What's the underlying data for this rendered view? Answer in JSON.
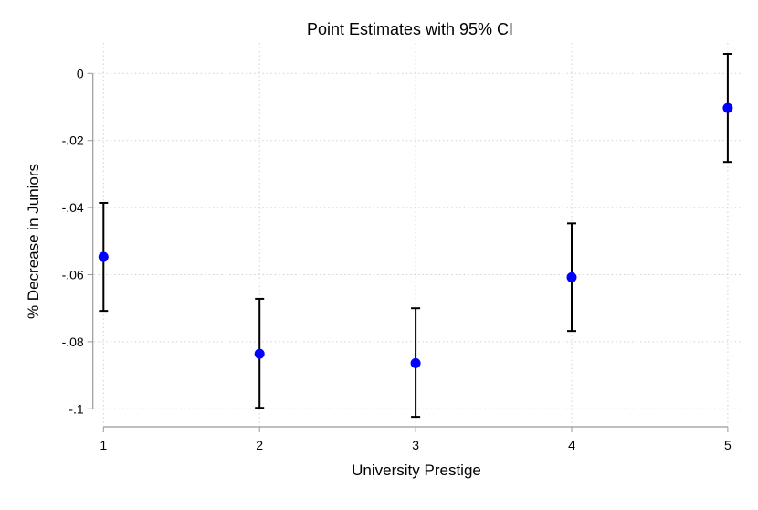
{
  "chart_data": {
    "type": "scatter",
    "title": "Point Estimates with 95% CI",
    "xlabel": "University Prestige",
    "ylabel": "% Decrease in Juniors",
    "x": [
      1,
      2,
      3,
      4,
      5
    ],
    "values": [
      -0.0547,
      -0.0836,
      -0.0864,
      -0.0608,
      -0.0103
    ],
    "ci_upper": [
      -0.0386,
      -0.0672,
      -0.07,
      -0.0447,
      0.0058
    ],
    "ci_lower": [
      -0.0708,
      -0.0997,
      -0.1024,
      -0.0768,
      -0.0264
    ],
    "xticks": [
      "1",
      "2",
      "3",
      "4",
      "5"
    ],
    "yticks": [
      0,
      -0.02,
      -0.04,
      -0.06,
      -0.08,
      -0.1
    ],
    "ytick_labels": [
      "0",
      "-.02",
      "-.04",
      "-.06",
      "-.08",
      "-.1"
    ],
    "xlim": [
      1,
      5
    ],
    "ylim": [
      -0.1,
      0
    ],
    "grid": true,
    "marker_color": "#0000ff",
    "errorbar_color": "#000000",
    "grid_color": "#d0d0d0"
  }
}
